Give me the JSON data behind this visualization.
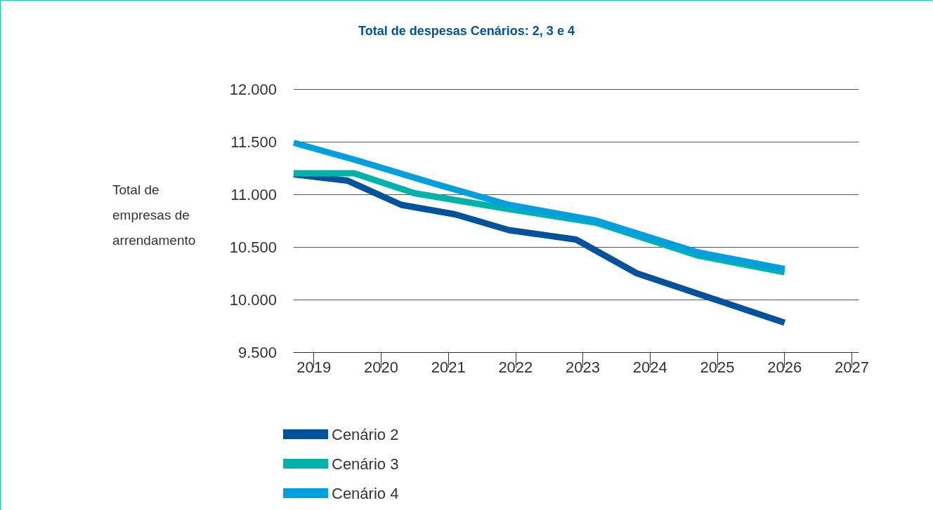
{
  "chart_data": {
    "type": "line",
    "title": "Total de despesas Cenários: 2, 3 e 4",
    "ylabel": "Total de\nempresas de\narrendamento",
    "xlim": [
      2018.7,
      2027.1
    ],
    "xticks": [
      2019,
      2020,
      2021,
      2022,
      2023,
      2024,
      2025,
      2026,
      2027
    ],
    "ylim": [
      9500,
      12000
    ],
    "yticks": [
      {
        "value": 9500,
        "label": "9.500"
      },
      {
        "value": 10000,
        "label": "10.000"
      },
      {
        "value": 10500,
        "label": "10.500"
      },
      {
        "value": 11000,
        "label": "11.000"
      },
      {
        "value": 11500,
        "label": "11.500"
      },
      {
        "value": 12000,
        "label": "12.000"
      }
    ],
    "grid": "y",
    "legend": "bottom left",
    "marker": "none",
    "line_style": "solid",
    "series": [
      {
        "name": "Cenário 2",
        "color": "#00529b",
        "x": [
          2018.7,
          2019.5,
          2020.3,
          2021.1,
          2021.9,
          2022.9,
          2023.8,
          2026.0
        ],
        "values": [
          11190,
          11130,
          10900,
          10810,
          10660,
          10570,
          10250,
          9780
        ]
      },
      {
        "name": "Cenário 3",
        "color": "#00b2a9",
        "x": [
          2018.7,
          2019.6,
          2020.5,
          2021.9,
          2023.2,
          2024.7,
          2026.0
        ],
        "values": [
          11200,
          11200,
          11010,
          10860,
          10730,
          10420,
          10260
        ]
      },
      {
        "name": "Cenário 4",
        "color": "#009fdf",
        "x": [
          2018.7,
          2019.6,
          2020.8,
          2021.9,
          2023.2,
          2024.7,
          2026.0
        ],
        "values": [
          11490,
          11330,
          11100,
          10900,
          10750,
          10450,
          10290
        ]
      }
    ]
  }
}
